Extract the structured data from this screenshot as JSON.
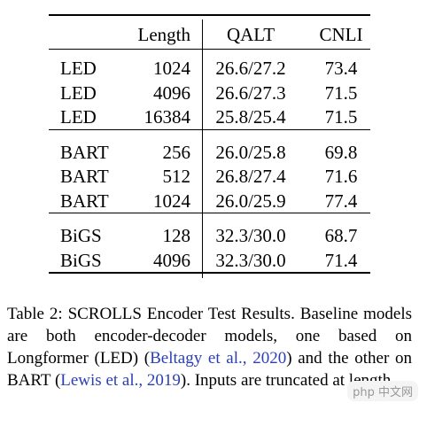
{
  "table": {
    "header": [
      "Length",
      "QALT",
      "CNLI"
    ],
    "groups": [
      [
        [
          "LED",
          "1024",
          "26.6/27.2",
          "73.4"
        ],
        [
          "LED",
          "4096",
          "26.6/27.3",
          "71.5"
        ],
        [
          "LED",
          "16384",
          "25.8/25.4",
          "71.5"
        ]
      ],
      [
        [
          "BART",
          "256",
          "26.0/25.8",
          "69.8"
        ],
        [
          "BART",
          "512",
          "26.8/27.4",
          "71.6"
        ],
        [
          "BART",
          "1024",
          "26.0/25.9",
          "77.4"
        ]
      ],
      [
        [
          "BiGS",
          "128",
          "32.3/30.0",
          "68.7"
        ],
        [
          "BiGS",
          "4096",
          "32.3/30.0",
          "71.4"
        ]
      ]
    ]
  },
  "caption": {
    "parts": [
      "Table 2: SCROLLS Encoder Test Results.  Baseline models are both encoder-decoder models, one based on Longformer (LED) (",
      "Beltagy et al., 2020",
      ") and the other on BART (",
      "Lewis et al., 2019",
      ").  Inputs are truncated at length."
    ]
  },
  "watermark": "php 中文网"
}
